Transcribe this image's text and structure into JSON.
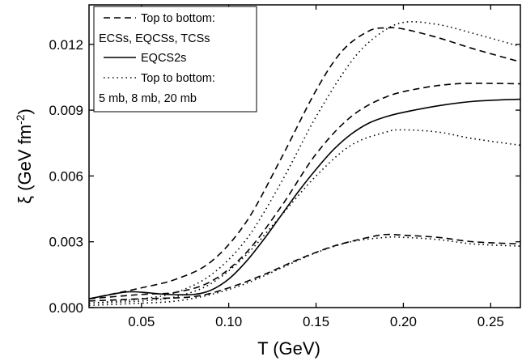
{
  "chart_data": {
    "type": "line",
    "xlabel": "T (GeV)",
    "ylabel": {
      "main": "ξ (GeV fm",
      "sup": "-2",
      "close": ")"
    },
    "xlim": [
      0.02,
      0.267
    ],
    "ylim": [
      0.0,
      0.0138
    ],
    "xticks": [
      0.05,
      0.1,
      0.15,
      0.2,
      0.25
    ],
    "xtick_labels": [
      "0.05",
      "0.10",
      "0.15",
      "0.20",
      "0.25"
    ],
    "yticks": [
      0.0,
      0.003,
      0.006,
      0.009,
      0.012
    ],
    "ytick_labels": [
      "0.000",
      "0.003",
      "0.006",
      "0.009",
      "0.012"
    ],
    "legend": {
      "placement": "top-left",
      "entries": [
        {
          "style": "dashed",
          "label": "Top to bottom:"
        },
        {
          "style": "none",
          "label": "ECSs, EQCSs, TCSs"
        },
        {
          "style": "solid",
          "label": "EQCS2s"
        },
        {
          "style": "dotted",
          "label": "Top to bottom:"
        },
        {
          "style": "none",
          "label": "5 mb, 8 mb, 20 mb"
        }
      ]
    },
    "series": [
      {
        "style": "dashed",
        "x": [
          0.02,
          0.05,
          0.07,
          0.09,
          0.11,
          0.13,
          0.15,
          0.165,
          0.18,
          0.19,
          0.2,
          0.22,
          0.24,
          0.267
        ],
        "y": [
          0.0004,
          0.0009,
          0.0013,
          0.0021,
          0.0039,
          0.0068,
          0.0099,
          0.0117,
          0.0126,
          0.01275,
          0.0127,
          0.0123,
          0.0118,
          0.0112
        ]
      },
      {
        "style": "dashed",
        "x": [
          0.02,
          0.05,
          0.07,
          0.09,
          0.11,
          0.13,
          0.15,
          0.17,
          0.19,
          0.21,
          0.23,
          0.25,
          0.267
        ],
        "y": [
          0.0004,
          0.0006,
          0.0007,
          0.0012,
          0.0025,
          0.0046,
          0.007,
          0.0087,
          0.0096,
          0.01,
          0.0102,
          0.01022,
          0.0102
        ]
      },
      {
        "style": "dashed",
        "x": [
          0.02,
          0.05,
          0.08,
          0.1,
          0.12,
          0.14,
          0.16,
          0.18,
          0.19,
          0.2,
          0.22,
          0.24,
          0.267
        ],
        "y": [
          0.0003,
          0.0004,
          0.0005,
          0.0009,
          0.0015,
          0.0022,
          0.0028,
          0.0032,
          0.00333,
          0.0033,
          0.0032,
          0.003,
          0.0029
        ]
      },
      {
        "style": "solid",
        "x": [
          0.02,
          0.04,
          0.05,
          0.065,
          0.08,
          0.09,
          0.1,
          0.11,
          0.12,
          0.13,
          0.14,
          0.15,
          0.16,
          0.17,
          0.18,
          0.19,
          0.2,
          0.22,
          0.24,
          0.267
        ],
        "y": [
          0.0004,
          0.0007,
          0.0007,
          0.0006,
          0.0006,
          0.0008,
          0.0013,
          0.0021,
          0.0031,
          0.0042,
          0.0053,
          0.0063,
          0.0072,
          0.0079,
          0.0084,
          0.0087,
          0.0089,
          0.0092,
          0.0094,
          0.0095
        ]
      },
      {
        "style": "dotted",
        "x": [
          0.02,
          0.05,
          0.07,
          0.09,
          0.11,
          0.13,
          0.15,
          0.17,
          0.185,
          0.2,
          0.22,
          0.24,
          0.267
        ],
        "y": [
          0.0002,
          0.0004,
          0.0007,
          0.0015,
          0.0031,
          0.0057,
          0.0087,
          0.0112,
          0.0124,
          0.013,
          0.0129,
          0.0125,
          0.0119
        ]
      },
      {
        "style": "dotted",
        "x": [
          0.02,
          0.05,
          0.07,
          0.09,
          0.11,
          0.13,
          0.15,
          0.17,
          0.19,
          0.2,
          0.22,
          0.24,
          0.267
        ],
        "y": [
          0.0002,
          0.0003,
          0.0005,
          0.0011,
          0.0024,
          0.0042,
          0.006,
          0.0074,
          0.008,
          0.0081,
          0.008,
          0.0077,
          0.0074
        ]
      },
      {
        "style": "dotted",
        "x": [
          0.02,
          0.05,
          0.07,
          0.09,
          0.11,
          0.13,
          0.15,
          0.17,
          0.19,
          0.2,
          0.22,
          0.24,
          0.267
        ],
        "y": [
          0.0001,
          0.0002,
          0.0003,
          0.0006,
          0.0011,
          0.0018,
          0.0025,
          0.003,
          0.0032,
          0.0032,
          0.0031,
          0.0029,
          0.0028
        ]
      }
    ]
  }
}
